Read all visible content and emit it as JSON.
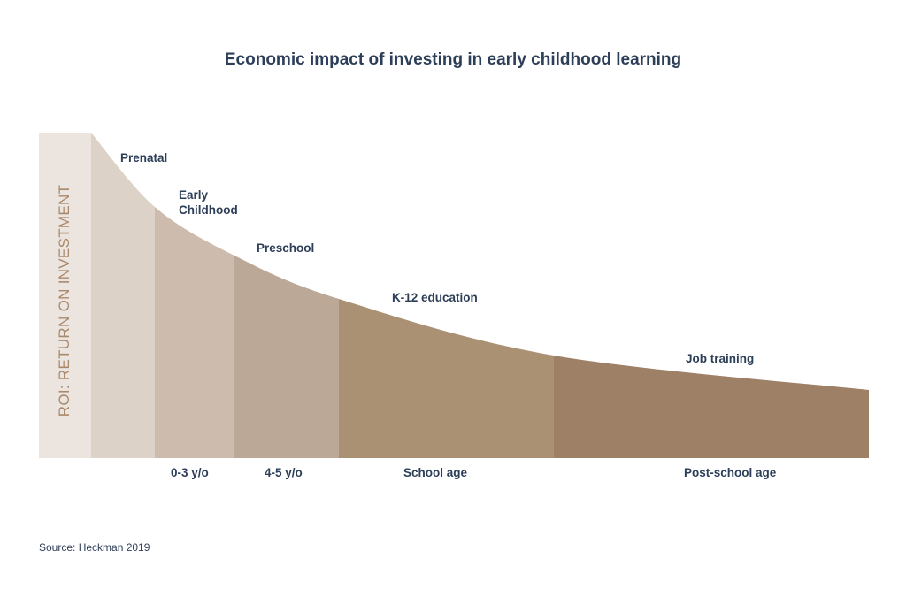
{
  "chart_data": {
    "type": "area",
    "title": "Economic impact of investing in early childhood learning",
    "ylabel": "ROI: RETURN ON INVESTMENT",
    "xlabel": "",
    "stages": [
      {
        "label": "Prenatal",
        "age_label": "",
        "color": "#ddd2c7"
      },
      {
        "label": "Early Childhood",
        "age_label": "0-3 y/o",
        "color": "#cdbcad"
      },
      {
        "label": "Preschool",
        "age_label": "4-5 y/o",
        "color": "#bba897"
      },
      {
        "label": "K-12 education",
        "age_label": "School age",
        "color": "#ab9173"
      },
      {
        "label": "Job training",
        "age_label": "Post-school age",
        "color": "#9e8066"
      }
    ],
    "trend": "decreasing",
    "axis_band_color": "#ece5df",
    "source": "Source: Heckman 2019"
  }
}
